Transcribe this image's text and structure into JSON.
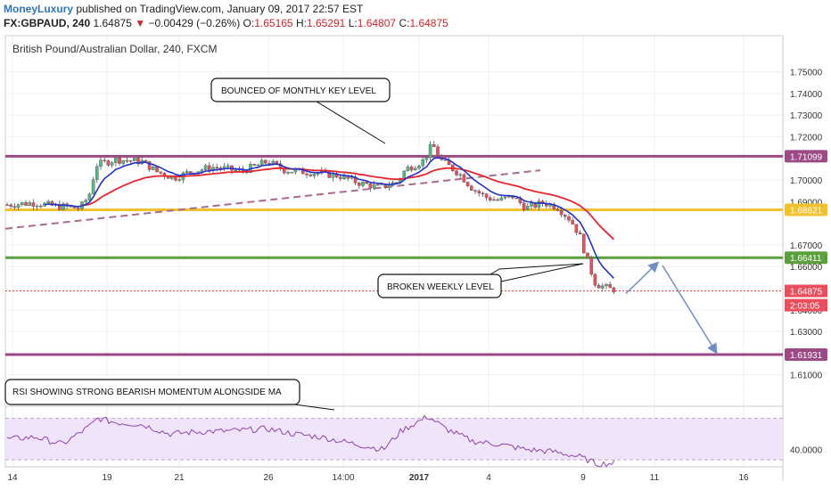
{
  "header": {
    "author": "MoneyLuxury",
    "published_text": "published on TradingView.com, January 09, 2017 22:57 EST",
    "symbol": "FX:GBPAUD, 240",
    "last": "1.64875",
    "change_arrow": "▼",
    "change": "−0.00429 (−0.26%)",
    "open_label": "O:",
    "open": "1.65165",
    "high_label": "H:",
    "high": "1.65291",
    "low_label": "L:",
    "low": "1.64807",
    "close_label": "C:",
    "close": "1.64875"
  },
  "chart_data": {
    "type": "candlestick",
    "title": "British Pound/Australian Dollar, 240, FXCM",
    "ylim": [
      1.6045,
      1.7585
    ],
    "y_ticks": [
      "1.75000",
      "1.74000",
      "1.73000",
      "1.72000",
      "1.71000",
      "1.70000",
      "1.69000",
      "1.67000",
      "1.66000",
      "1.64000",
      "1.63000",
      "1.62000",
      "1.61000"
    ],
    "x_ticks": [
      "14",
      "19",
      "21",
      "26",
      "14:00",
      "2017",
      "4",
      "9",
      "11",
      "16"
    ],
    "horizontal_levels": [
      {
        "price": 1.71099,
        "label": "1.71099",
        "color": "#9b4a86"
      },
      {
        "price": 1.68621,
        "label": "1.68621",
        "color": "#f2c12e"
      },
      {
        "price": 1.66411,
        "label": "1.66411",
        "color": "#5aa03c"
      },
      {
        "price": 1.61931,
        "label": "1.61931",
        "color": "#9b4a86"
      }
    ],
    "last_price_label": "1.64875",
    "countdown_label": "2:03:05",
    "rsi": {
      "ylim": [
        25,
        80
      ],
      "upper": 70,
      "lower": 30,
      "tick": "40.0000"
    },
    "annotations": [
      "BOUNCED OF MONTHLY KEY LEVEL",
      "BROKEN WEEKLY LEVEL",
      "RSI SHOWING STRONG BEARISH MOMENTUM ALONGSIDE MA"
    ],
    "colors": {
      "up": "#53b987",
      "down": "#eb4d5c",
      "ma_fast": "#2233cc",
      "ma_slow": "#e8252c",
      "rsi": "#8e44ad",
      "arrow": "#6f8fc4"
    }
  }
}
